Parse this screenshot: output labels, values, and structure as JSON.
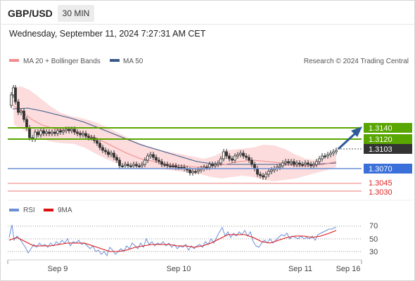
{
  "header": {
    "symbol": "GBP/USD",
    "timeframe": "30 MIN",
    "datetime": "Wednesday, September 11, 2024 7:27:31 AM CET"
  },
  "legend": {
    "ma20": "MA 20 + Bollinger Bands",
    "ma50": "MA 50",
    "credit": "Research © 2024 Trading Central",
    "rsi": "RSI",
    "ma9": "9MA"
  },
  "colors": {
    "resistance": "#5aa600",
    "support_blue": "#3b6fd9",
    "support_red": "#ee7777",
    "current": "#333333",
    "ma20": "#f28c8c",
    "ma50": "#3a5a8c",
    "rsi": "#6b8fd6",
    "rsi_ma": "#dd1111",
    "arrow": "#2f5a98"
  },
  "levels": [
    {
      "label": "1.3140",
      "type": "resistance"
    },
    {
      "label": "1.3120",
      "type": "resistance"
    },
    {
      "label": "1.3103",
      "type": "current"
    },
    {
      "label": "1.3070",
      "type": "pivot"
    },
    {
      "label": "1.3045",
      "type": "support"
    },
    {
      "label": "1.3030",
      "type": "support"
    }
  ],
  "rsi_axis": [
    "70",
    "50",
    "30"
  ],
  "x_axis": [
    "Sep 9",
    "Sep 10",
    "Sep 11",
    "Sep 16"
  ]
}
